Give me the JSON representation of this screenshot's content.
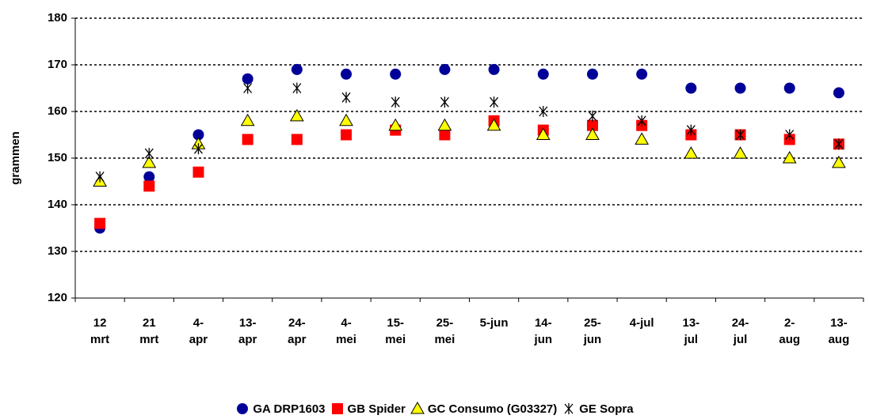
{
  "chart_data": {
    "type": "scatter",
    "ylabel": "grammen",
    "categories": [
      "12\nmrt",
      "21\nmrt",
      "4-\napr",
      "13-\napr",
      "24-\napr",
      "4-\nmei",
      "15-\nmei",
      "25-\nmei",
      "5-jun",
      "14-\njun",
      "25-\njun",
      "4-jul",
      "13-\njul",
      "24-\njul",
      "2-\naug",
      "13-\naug"
    ],
    "series": [
      {
        "name": "GA DRP1603",
        "color": "#000099",
        "marker": "circle",
        "values": [
          135,
          146,
          155,
          167,
          169,
          168,
          168,
          169,
          169,
          168,
          168,
          168,
          165,
          165,
          165,
          164
        ]
      },
      {
        "name": "GB Spider",
        "color": "#ff0000",
        "marker": "square",
        "values": [
          136,
          144,
          147,
          154,
          154,
          155,
          156,
          155,
          158,
          156,
          157,
          157,
          155,
          155,
          154,
          153
        ]
      },
      {
        "name": "GC Consumo (G03327)",
        "color": "#ffff00",
        "marker": "triangle",
        "values": [
          145,
          149,
          153,
          158,
          159,
          158,
          157,
          157,
          157,
          155,
          155,
          154,
          151,
          151,
          150,
          149
        ]
      },
      {
        "name": "GE Sopra",
        "color": "#000000",
        "marker": "star",
        "values": [
          146,
          151,
          152,
          165,
          165,
          163,
          162,
          162,
          162,
          160,
          159,
          158,
          156,
          155,
          155,
          153
        ]
      }
    ],
    "ylim": [
      120,
      180
    ],
    "yticks": [
      120,
      130,
      140,
      150,
      160,
      170,
      180
    ],
    "grid": true,
    "legend": "bottom"
  }
}
